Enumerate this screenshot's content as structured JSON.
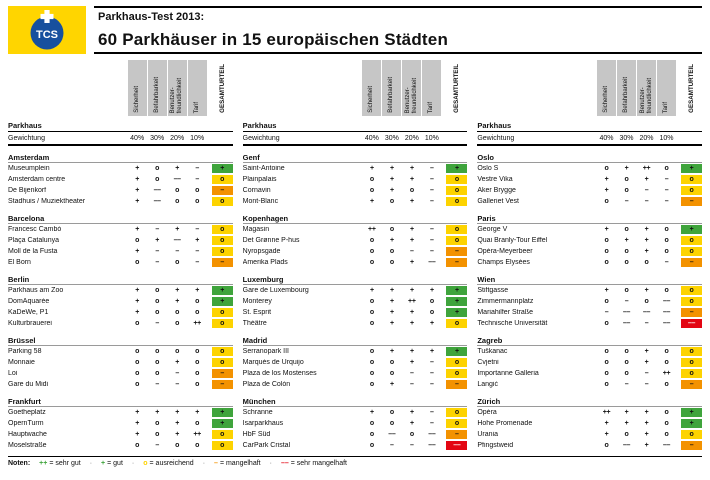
{
  "header": {
    "logo_text": "TCS",
    "title_line1": "Parkhaus-Test 2013:",
    "title_line2": "60 Parkhäuser in 15 europäischen Städten"
  },
  "colors": {
    "brand_yellow": "#ffd500",
    "logo_blue": "#17509e",
    "header_grey": "#c6c6c6",
    "grade_green": "#3fa43c",
    "grade_yellow": "#fdd300",
    "grade_orange": "#f39200",
    "grade_red": "#e30613"
  },
  "grade_colors": {
    "++": "#3fa43c",
    "+": "#3fa43c",
    "o": "#fdd300",
    "–": "#f39200",
    "––": "#e30613"
  },
  "table": {
    "row_label": "Parkhaus",
    "weight_label": "Gewichtung",
    "criteria": [
      "Sicherheit",
      "Befahrbarkeit",
      "Benutzer-\nfreundlichkeit",
      "Tarif"
    ],
    "overall_label": "GESAMTURTEIL",
    "weights": [
      "40%",
      "30%",
      "20%",
      "10%"
    ]
  },
  "columns": [
    {
      "cities": [
        {
          "name": "Amsterdam",
          "rows": [
            {
              "name": "Museumplein",
              "ratings": [
                "+",
                "o",
                "+",
                "–"
              ],
              "overall": "+"
            },
            {
              "name": "Amsterdam centre",
              "ratings": [
                "+",
                "o",
                "––",
                "–"
              ],
              "overall": "o"
            },
            {
              "name": "De Bijenkorf",
              "ratings": [
                "+",
                "––",
                "o",
                "o"
              ],
              "overall": "–"
            },
            {
              "name": "Stadhuis / Muziektheater",
              "ratings": [
                "+",
                "––",
                "o",
                "o"
              ],
              "overall": "o"
            }
          ]
        },
        {
          "name": "Barcelona",
          "rows": [
            {
              "name": "Francesc Cambó",
              "ratings": [
                "+",
                "–",
                "+",
                "–"
              ],
              "overall": "o"
            },
            {
              "name": "Plaça Catalunya",
              "ratings": [
                "o",
                "+",
                "––",
                "+"
              ],
              "overall": "o"
            },
            {
              "name": "Moll de la Fusta",
              "ratings": [
                "+",
                "–",
                "–",
                "–"
              ],
              "overall": "o"
            },
            {
              "name": "El Born",
              "ratings": [
                "o",
                "–",
                "o",
                "–"
              ],
              "overall": "–"
            }
          ]
        },
        {
          "name": "Berlin",
          "rows": [
            {
              "name": "Parkhaus am Zoo",
              "ratings": [
                "+",
                "o",
                "+",
                "+"
              ],
              "overall": "+"
            },
            {
              "name": "DomAquarée",
              "ratings": [
                "+",
                "o",
                "+",
                "o"
              ],
              "overall": "+"
            },
            {
              "name": "KaDeWe, P1",
              "ratings": [
                "+",
                "o",
                "o",
                "o"
              ],
              "overall": "o"
            },
            {
              "name": "Kulturbrauerei",
              "ratings": [
                "o",
                "–",
                "o",
                "++"
              ],
              "overall": "o"
            }
          ]
        },
        {
          "name": "Brüssel",
          "rows": [
            {
              "name": "Parking 58",
              "ratings": [
                "o",
                "o",
                "o",
                "o"
              ],
              "overall": "o"
            },
            {
              "name": "Monnaie",
              "ratings": [
                "o",
                "o",
                "+",
                "o"
              ],
              "overall": "o"
            },
            {
              "name": "Loi",
              "ratings": [
                "o",
                "o",
                "–",
                "o"
              ],
              "overall": "–"
            },
            {
              "name": "Gare du Midi",
              "ratings": [
                "o",
                "–",
                "–",
                "o"
              ],
              "overall": "–"
            }
          ]
        },
        {
          "name": "Frankfurt",
          "rows": [
            {
              "name": "Goetheplatz",
              "ratings": [
                "+",
                "+",
                "+",
                "+"
              ],
              "overall": "+"
            },
            {
              "name": "OpernTurm",
              "ratings": [
                "+",
                "o",
                "+",
                "o"
              ],
              "overall": "+"
            },
            {
              "name": "Hauptwache",
              "ratings": [
                "+",
                "o",
                "+",
                "++"
              ],
              "overall": "o"
            },
            {
              "name": "Moselstraße",
              "ratings": [
                "o",
                "–",
                "o",
                "o"
              ],
              "overall": "o"
            }
          ]
        }
      ]
    },
    {
      "cities": [
        {
          "name": "Genf",
          "rows": [
            {
              "name": "Saint-Antoine",
              "ratings": [
                "+",
                "+",
                "+",
                "–"
              ],
              "overall": "+"
            },
            {
              "name": "Plainpalais",
              "ratings": [
                "o",
                "+",
                "+",
                "–"
              ],
              "overall": "o"
            },
            {
              "name": "Cornavin",
              "ratings": [
                "o",
                "+",
                "o",
                "–"
              ],
              "overall": "o"
            },
            {
              "name": "Mont-Blanc",
              "ratings": [
                "+",
                "o",
                "+",
                "–"
              ],
              "overall": "o"
            }
          ]
        },
        {
          "name": "Kopenhagen",
          "rows": [
            {
              "name": "Magasin",
              "ratings": [
                "++",
                "o",
                "+",
                "–"
              ],
              "overall": "o"
            },
            {
              "name": "Det Grønne P-hus",
              "ratings": [
                "o",
                "+",
                "+",
                "–"
              ],
              "overall": "o"
            },
            {
              "name": "Nyropsgade",
              "ratings": [
                "o",
                "o",
                "–",
                "–"
              ],
              "overall": "–"
            },
            {
              "name": "Amerika Plads",
              "ratings": [
                "o",
                "o",
                "+",
                "––"
              ],
              "overall": "–"
            }
          ]
        },
        {
          "name": "Luxemburg",
          "rows": [
            {
              "name": "Gare de Luxembourg",
              "ratings": [
                "+",
                "+",
                "+",
                "+"
              ],
              "overall": "+"
            },
            {
              "name": "Monterey",
              "ratings": [
                "o",
                "+",
                "++",
                "o"
              ],
              "overall": "+"
            },
            {
              "name": "St. Esprit",
              "ratings": [
                "o",
                "+",
                "+",
                "o"
              ],
              "overall": "+"
            },
            {
              "name": "Théâtre",
              "ratings": [
                "o",
                "+",
                "+",
                "+"
              ],
              "overall": "o"
            }
          ]
        },
        {
          "name": "Madrid",
          "rows": [
            {
              "name": "Serranopark III",
              "ratings": [
                "o",
                "+",
                "+",
                "+"
              ],
              "overall": "+"
            },
            {
              "name": "Marqués de Urquijo",
              "ratings": [
                "o",
                "o",
                "+",
                "–"
              ],
              "overall": "o"
            },
            {
              "name": "Plaza de los Mostenses",
              "ratings": [
                "o",
                "o",
                "–",
                "–"
              ],
              "overall": "o"
            },
            {
              "name": "Plaza de Colón",
              "ratings": [
                "o",
                "+",
                "–",
                "–"
              ],
              "overall": "–"
            }
          ]
        },
        {
          "name": "München",
          "rows": [
            {
              "name": "Schranne",
              "ratings": [
                "+",
                "o",
                "+",
                "–"
              ],
              "overall": "o"
            },
            {
              "name": "Isarparkhaus",
              "ratings": [
                "o",
                "o",
                "+",
                "–"
              ],
              "overall": "o"
            },
            {
              "name": "HbF Süd",
              "ratings": [
                "o",
                "––",
                "o",
                "––"
              ],
              "overall": "–"
            },
            {
              "name": "CarPark Cristal",
              "ratings": [
                "o",
                "–",
                "–",
                "––"
              ],
              "overall": "––"
            }
          ]
        }
      ]
    },
    {
      "cities": [
        {
          "name": "Oslo",
          "rows": [
            {
              "name": "Oslo S",
              "ratings": [
                "o",
                "+",
                "++",
                "o"
              ],
              "overall": "+"
            },
            {
              "name": "Vestre Vika",
              "ratings": [
                "+",
                "o",
                "+",
                "–"
              ],
              "overall": "o"
            },
            {
              "name": "Aker Brygge",
              "ratings": [
                "+",
                "o",
                "–",
                "–"
              ],
              "overall": "o"
            },
            {
              "name": "Galleriet Vest",
              "ratings": [
                "o",
                "–",
                "–",
                "–"
              ],
              "overall": "–"
            }
          ]
        },
        {
          "name": "Paris",
          "rows": [
            {
              "name": "George V",
              "ratings": [
                "+",
                "o",
                "+",
                "o"
              ],
              "overall": "+"
            },
            {
              "name": "Quai Branly-Tour Eiffel",
              "ratings": [
                "o",
                "+",
                "+",
                "o"
              ],
              "overall": "o"
            },
            {
              "name": "Opéra-Meyerbeer",
              "ratings": [
                "o",
                "o",
                "+",
                "o"
              ],
              "overall": "o"
            },
            {
              "name": "Champs Élysées",
              "ratings": [
                "o",
                "o",
                "o",
                "–"
              ],
              "overall": "–"
            }
          ]
        },
        {
          "name": "Wien",
          "rows": [
            {
              "name": "Stiftgasse",
              "ratings": [
                "+",
                "o",
                "+",
                "o"
              ],
              "overall": "o"
            },
            {
              "name": "Zimmermannplatz",
              "ratings": [
                "o",
                "–",
                "o",
                "––"
              ],
              "overall": "o"
            },
            {
              "name": "Mariahilfer Straße",
              "ratings": [
                "–",
                "––",
                "––",
                "––"
              ],
              "overall": "–"
            },
            {
              "name": "Technische Universität",
              "ratings": [
                "o",
                "––",
                "–",
                "––"
              ],
              "overall": "––"
            }
          ]
        },
        {
          "name": "Zagreb",
          "rows": [
            {
              "name": "Tuškanac",
              "ratings": [
                "o",
                "o",
                "+",
                "o"
              ],
              "overall": "o"
            },
            {
              "name": "Cvjetni",
              "ratings": [
                "o",
                "o",
                "+",
                "o"
              ],
              "overall": "o"
            },
            {
              "name": "Importanne Galleria",
              "ratings": [
                "o",
                "o",
                "–",
                "++"
              ],
              "overall": "o"
            },
            {
              "name": "Langić",
              "ratings": [
                "o",
                "–",
                "–",
                "o"
              ],
              "overall": "–"
            }
          ]
        },
        {
          "name": "Zürich",
          "rows": [
            {
              "name": "Opéra",
              "ratings": [
                "++",
                "+",
                "+",
                "o"
              ],
              "overall": "+"
            },
            {
              "name": "Hohe Promenade",
              "ratings": [
                "+",
                "+",
                "+",
                "o"
              ],
              "overall": "+"
            },
            {
              "name": "Urania",
              "ratings": [
                "+",
                "o",
                "+",
                "o"
              ],
              "overall": "o"
            },
            {
              "name": "Pfingstweid",
              "ratings": [
                "o",
                "––",
                "+",
                "––"
              ],
              "overall": "–"
            }
          ]
        }
      ]
    }
  ],
  "legend": {
    "noten_label": "Noten:",
    "items": [
      {
        "symbol": "++",
        "label": "= sehr gut"
      },
      {
        "symbol": "+",
        "label": "= gut"
      },
      {
        "symbol": "o",
        "label": "= ausreichend"
      },
      {
        "symbol": "–",
        "label": "= mangelhaft"
      },
      {
        "symbol": "––",
        "label": "= sehr mangelhaft"
      }
    ]
  }
}
